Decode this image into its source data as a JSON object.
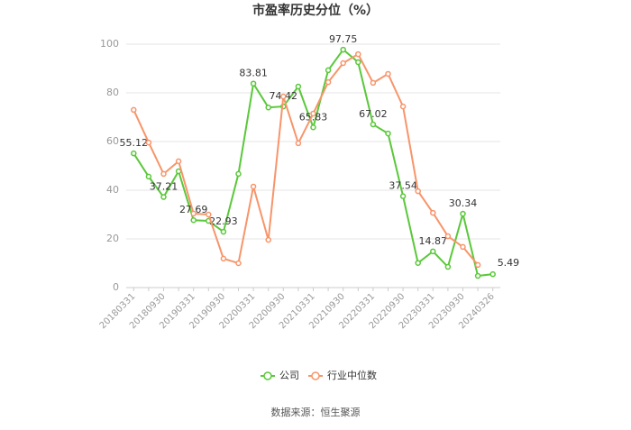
{
  "chart_data": {
    "type": "line",
    "title": "市盈率历史分位（%）",
    "categories": [
      "20180331",
      null,
      "20180930",
      null,
      "20190331",
      null,
      "20190930",
      null,
      "20200331",
      null,
      "20200930",
      null,
      "20210331",
      null,
      "20210930",
      null,
      "20220331",
      null,
      "20220930",
      null,
      "20230331",
      null,
      "20230930",
      null,
      "20240326"
    ],
    "series": [
      {
        "name": "公司",
        "color": "#5ac83a",
        "values": [
          55.12,
          45.6,
          37.21,
          47.8,
          27.69,
          27.4,
          22.93,
          46.7,
          83.81,
          74.0,
          74.42,
          82.6,
          65.83,
          89.3,
          97.75,
          92.6,
          67.02,
          63.3,
          37.54,
          10.1,
          14.87,
          8.5,
          30.34,
          4.8,
          5.49
        ],
        "value_labels": [
          "55.12",
          null,
          "37.21",
          null,
          "27.69",
          null,
          "22.93",
          null,
          "83.81",
          null,
          "74.42",
          null,
          "65.83",
          null,
          "97.75",
          null,
          "67.02",
          null,
          "37.54",
          null,
          "14.87",
          null,
          "30.34",
          null,
          "5.49"
        ]
      },
      {
        "name": "行业中位数",
        "color": "#f7956a",
        "values": [
          73.0,
          59.6,
          46.7,
          51.9,
          30.4,
          30.0,
          11.9,
          10.0,
          41.5,
          19.6,
          78.5,
          59.3,
          71.5,
          84.4,
          92.2,
          95.9,
          84.1,
          87.8,
          74.4,
          39.6,
          30.7,
          21.1,
          16.7,
          9.3,
          null
        ]
      }
    ],
    "ylim": [
      0,
      100
    ],
    "yticks": [
      0,
      20,
      40,
      60,
      80,
      100
    ],
    "grid": true,
    "source": "数据来源：恒生聚源"
  }
}
